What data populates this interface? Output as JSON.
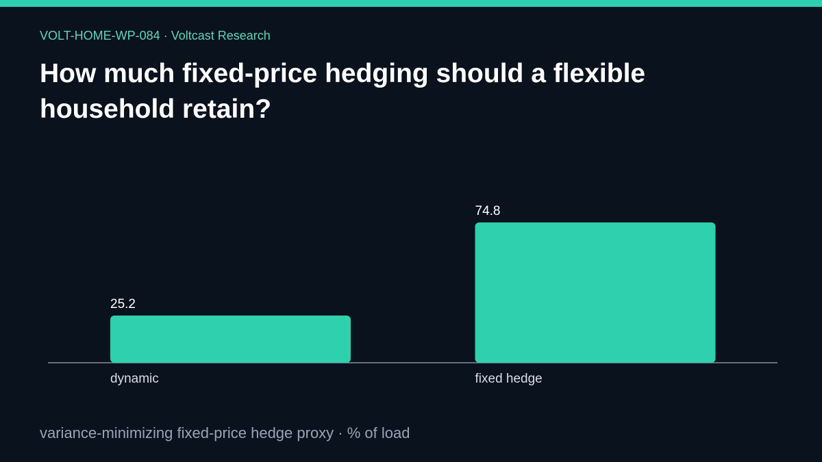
{
  "chart_data": {
    "type": "bar",
    "header": "VOLT-HOME-WP-084 · Voltcast Research",
    "title": "How much fixed-price hedging should a flexible household retain?",
    "caption": "variance-minimizing fixed-price hedge proxy · % of load",
    "categories": [
      "dynamic",
      "fixed hedge"
    ],
    "values": [
      25.2,
      74.8
    ],
    "color": "#2fd0ad",
    "ylim": [
      0,
      100
    ]
  }
}
